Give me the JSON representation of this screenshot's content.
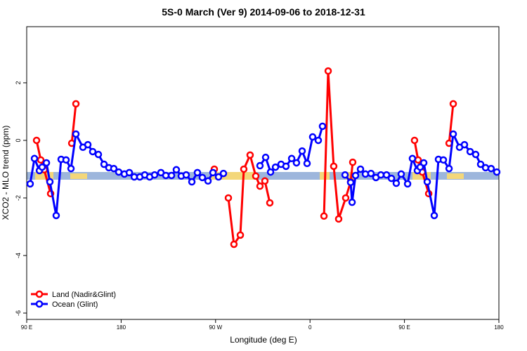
{
  "chart_data": {
    "type": "line",
    "title": "5S-0 March (Ver 9)   2014-09-06 to 2018-12-31",
    "x_label": "Longitude (deg E)",
    "y_label": "XCO2 - MLO trend (ppm)",
    "xlim": [
      90,
      540
    ],
    "ylim": [
      -6.22,
      3.95
    ],
    "xticks": [
      {
        "value": 90,
        "label": "90 E"
      },
      180,
      {
        "value": 270,
        "label": "90 W"
      },
      {
        "value": 360,
        "label": "0"
      },
      {
        "value": 450,
        "label": "90 E"
      },
      {
        "value": 540,
        "label": "180"
      }
    ],
    "yticks": [
      -6,
      -4,
      -2,
      0,
      2
    ],
    "legend": "bottom-left",
    "series": [
      {
        "name": "Land (Nadir&Glint)",
        "color": "#ff0000",
        "x": [
          99.4,
          103.4,
          106.7,
          112.8,
          null,
          132.9,
          136.9,
          null,
          268.8,
          null,
          282.2,
          287.5,
          293.6,
          296.9,
          302.9,
          308.3,
          312.3,
          317.0,
          321.7,
          null,
          373.3,
          377.3,
          382.6,
          387.3,
          394.0,
          398.7,
          400.7,
          null,
          459.6,
          463.0,
          467.0,
          473.1,
          null,
          492.5,
          496.5
        ],
        "values": [
          0.0,
          -0.68,
          -1.02,
          -1.85,
          null,
          -0.1,
          1.27,
          null,
          -1.0,
          null,
          -2.0,
          -3.61,
          -3.29,
          -1.0,
          -0.51,
          -1.24,
          -1.59,
          -1.41,
          -2.17,
          null,
          -2.63,
          2.41,
          -0.9,
          -2.73,
          -2.0,
          -1.44,
          -0.76,
          null,
          0.0,
          -0.68,
          -1.1,
          -1.85,
          null,
          -0.1,
          1.27
        ]
      },
      {
        "name": "Ocean (Glint)",
        "color": "#0000ff",
        "x": [
          93.3,
          97.4,
          102.1,
          104.7,
          108.8,
          112.1,
          118.1,
          122.8,
          127.5,
          132.2,
          136.9,
          143.6,
          148.3,
          152.9,
          158.3,
          163.7,
          168.3,
          173.0,
          177.7,
          183.1,
          187.8,
          192.5,
          197.8,
          202.5,
          207.2,
          211.9,
          217.9,
          222.6,
          228.0,
          232.6,
          237.3,
          242.0,
          247.4,
          252.7,
          257.4,
          262.8,
          267.5,
          272.8,
          277.5,
          null,
          312.3,
          317.7,
          322.4,
          327.1,
          332.4,
          337.1,
          342.5,
          347.1,
          352.5,
          357.2,
          362.5,
          367.9,
          371.9,
          null,
          393.4,
          398.7,
          400.1,
          403.4,
          408.1,
          412.8,
          418.1,
          422.8,
          427.5,
          432.9,
          437.6,
          442.2,
          446.9,
          453.0,
          457.6,
          462.3,
          465.0,
          468.4,
          471.7,
          478.4,
          482.4,
          487.1,
          492.5,
          496.5,
          502.5,
          507.2,
          512.6,
          517.9,
          522.6,
          527.3,
          532.6,
          538.0
        ],
        "values": [
          -1.51,
          -0.63,
          -1.05,
          -0.93,
          -0.78,
          -1.44,
          -2.61,
          -0.66,
          -0.68,
          -0.98,
          0.22,
          -0.24,
          -0.15,
          -0.39,
          -0.49,
          -0.83,
          -0.95,
          -0.98,
          -1.1,
          -1.17,
          -1.12,
          -1.27,
          -1.27,
          -1.2,
          -1.27,
          -1.2,
          -1.12,
          -1.22,
          -1.22,
          -1.02,
          -1.24,
          -1.2,
          -1.44,
          -1.12,
          -1.29,
          -1.41,
          -1.12,
          -1.27,
          -1.15,
          null,
          -0.88,
          -0.59,
          -1.1,
          -0.93,
          -0.83,
          -0.9,
          -0.63,
          -0.78,
          -0.37,
          -0.8,
          0.12,
          0.0,
          0.49,
          null,
          -1.2,
          -1.46,
          -2.15,
          -1.22,
          -1.0,
          -1.17,
          -1.15,
          -1.29,
          -1.2,
          -1.2,
          -1.32,
          -1.49,
          -1.17,
          -1.51,
          -0.63,
          -1.05,
          -0.93,
          -0.78,
          -1.44,
          -2.61,
          -0.66,
          -0.68,
          -0.98,
          0.22,
          -0.24,
          -0.15,
          -0.39,
          -0.49,
          -0.83,
          -0.95,
          -0.98,
          -1.1
        ]
      }
    ]
  }
}
